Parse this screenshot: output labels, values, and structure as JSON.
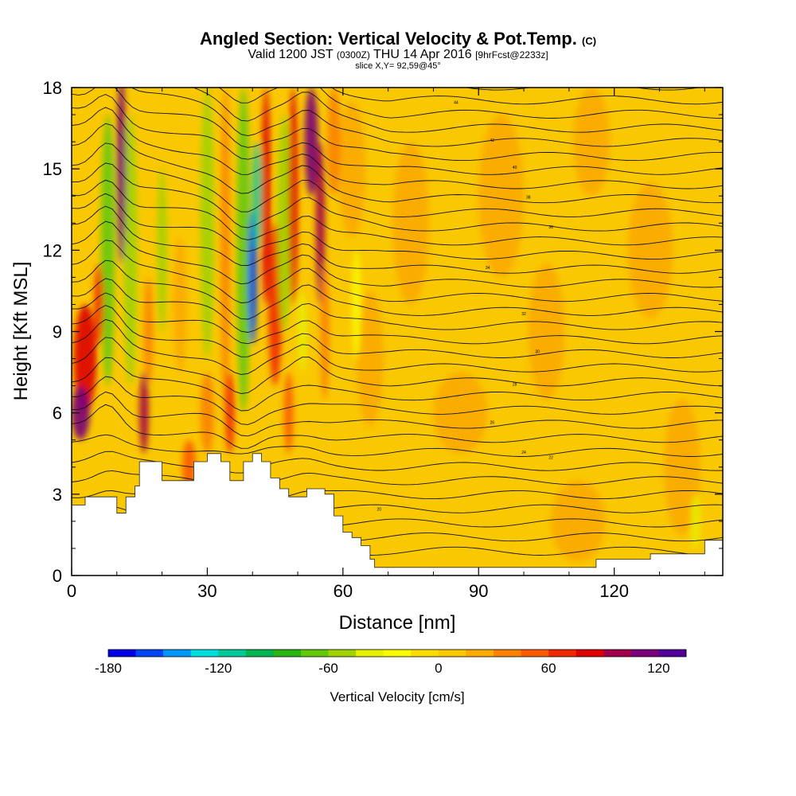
{
  "header": {
    "title_main": "Angled Section: Vertical Velocity & Pot.Temp.",
    "title_unit": "(C)",
    "valid_prefix": "Valid 1200 JST",
    "valid_utc": "(0300Z)",
    "valid_date": "THU 14 Apr 2016",
    "valid_fcst": "[9hrFcst@2233z]",
    "slice": "slice X,Y= 92,59@45°"
  },
  "chart_data": {
    "type": "heatmap",
    "xlabel": "Distance [nm]",
    "ylabel": "Height [Kft MSL]",
    "xlim": [
      0,
      144
    ],
    "ylim": [
      0,
      18
    ],
    "xticks": [
      0,
      30,
      60,
      90,
      120
    ],
    "yticks": [
      0,
      3,
      6,
      9,
      12,
      15,
      18
    ],
    "field": "Vertical Velocity",
    "contour_field": "Pot.Temp. (C)",
    "contour_labels": [
      "44",
      "42",
      "40",
      "38",
      "36",
      "34",
      "32",
      "30",
      "28",
      "26",
      "24",
      "22",
      "20"
    ],
    "terrain_kft": [
      [
        0,
        2.6
      ],
      [
        3,
        2.9
      ],
      [
        9,
        2.9
      ],
      [
        10,
        2.3
      ],
      [
        12,
        2.9
      ],
      [
        14,
        3.3
      ],
      [
        15,
        4.2
      ],
      [
        18,
        4.2
      ],
      [
        20,
        3.5
      ],
      [
        24,
        3.5
      ],
      [
        27,
        4.2
      ],
      [
        30,
        4.5
      ],
      [
        33,
        4.2
      ],
      [
        35,
        3.5
      ],
      [
        38,
        4.2
      ],
      [
        40,
        4.5
      ],
      [
        42,
        4.2
      ],
      [
        44,
        3.6
      ],
      [
        46,
        3.2
      ],
      [
        48,
        2.9
      ],
      [
        52,
        3.2
      ],
      [
        56,
        3.0
      ],
      [
        58,
        2.2
      ],
      [
        60,
        1.6
      ],
      [
        62,
        1.4
      ],
      [
        64,
        1.1
      ],
      [
        66,
        0.6
      ],
      [
        67,
        0.3
      ],
      [
        114,
        0.3
      ],
      [
        116,
        0.6
      ],
      [
        126,
        0.6
      ],
      [
        128,
        0.8
      ],
      [
        138,
        0.8
      ],
      [
        140,
        1.3
      ],
      [
        144,
        1.3
      ]
    ],
    "colorbar": {
      "title": "Vertical Velocity [cm/s]",
      "min": -180,
      "max": 150,
      "step": 15,
      "tick_values": [
        -180,
        -120,
        -60,
        0,
        60,
        120
      ],
      "tick_labels": [
        "-180",
        "-120",
        "-60",
        "0",
        "60",
        "120"
      ],
      "colors": [
        "#0000e6",
        "#0046f5",
        "#0096f5",
        "#00dcdc",
        "#00c896",
        "#00b450",
        "#28b414",
        "#64c80a",
        "#a0d200",
        "#e6f000",
        "#fafa00",
        "#fadc00",
        "#fac800",
        "#faaa00",
        "#fa8200",
        "#fa5a00",
        "#f02800",
        "#dc0000",
        "#a0004b",
        "#780078",
        "#500096"
      ]
    }
  }
}
